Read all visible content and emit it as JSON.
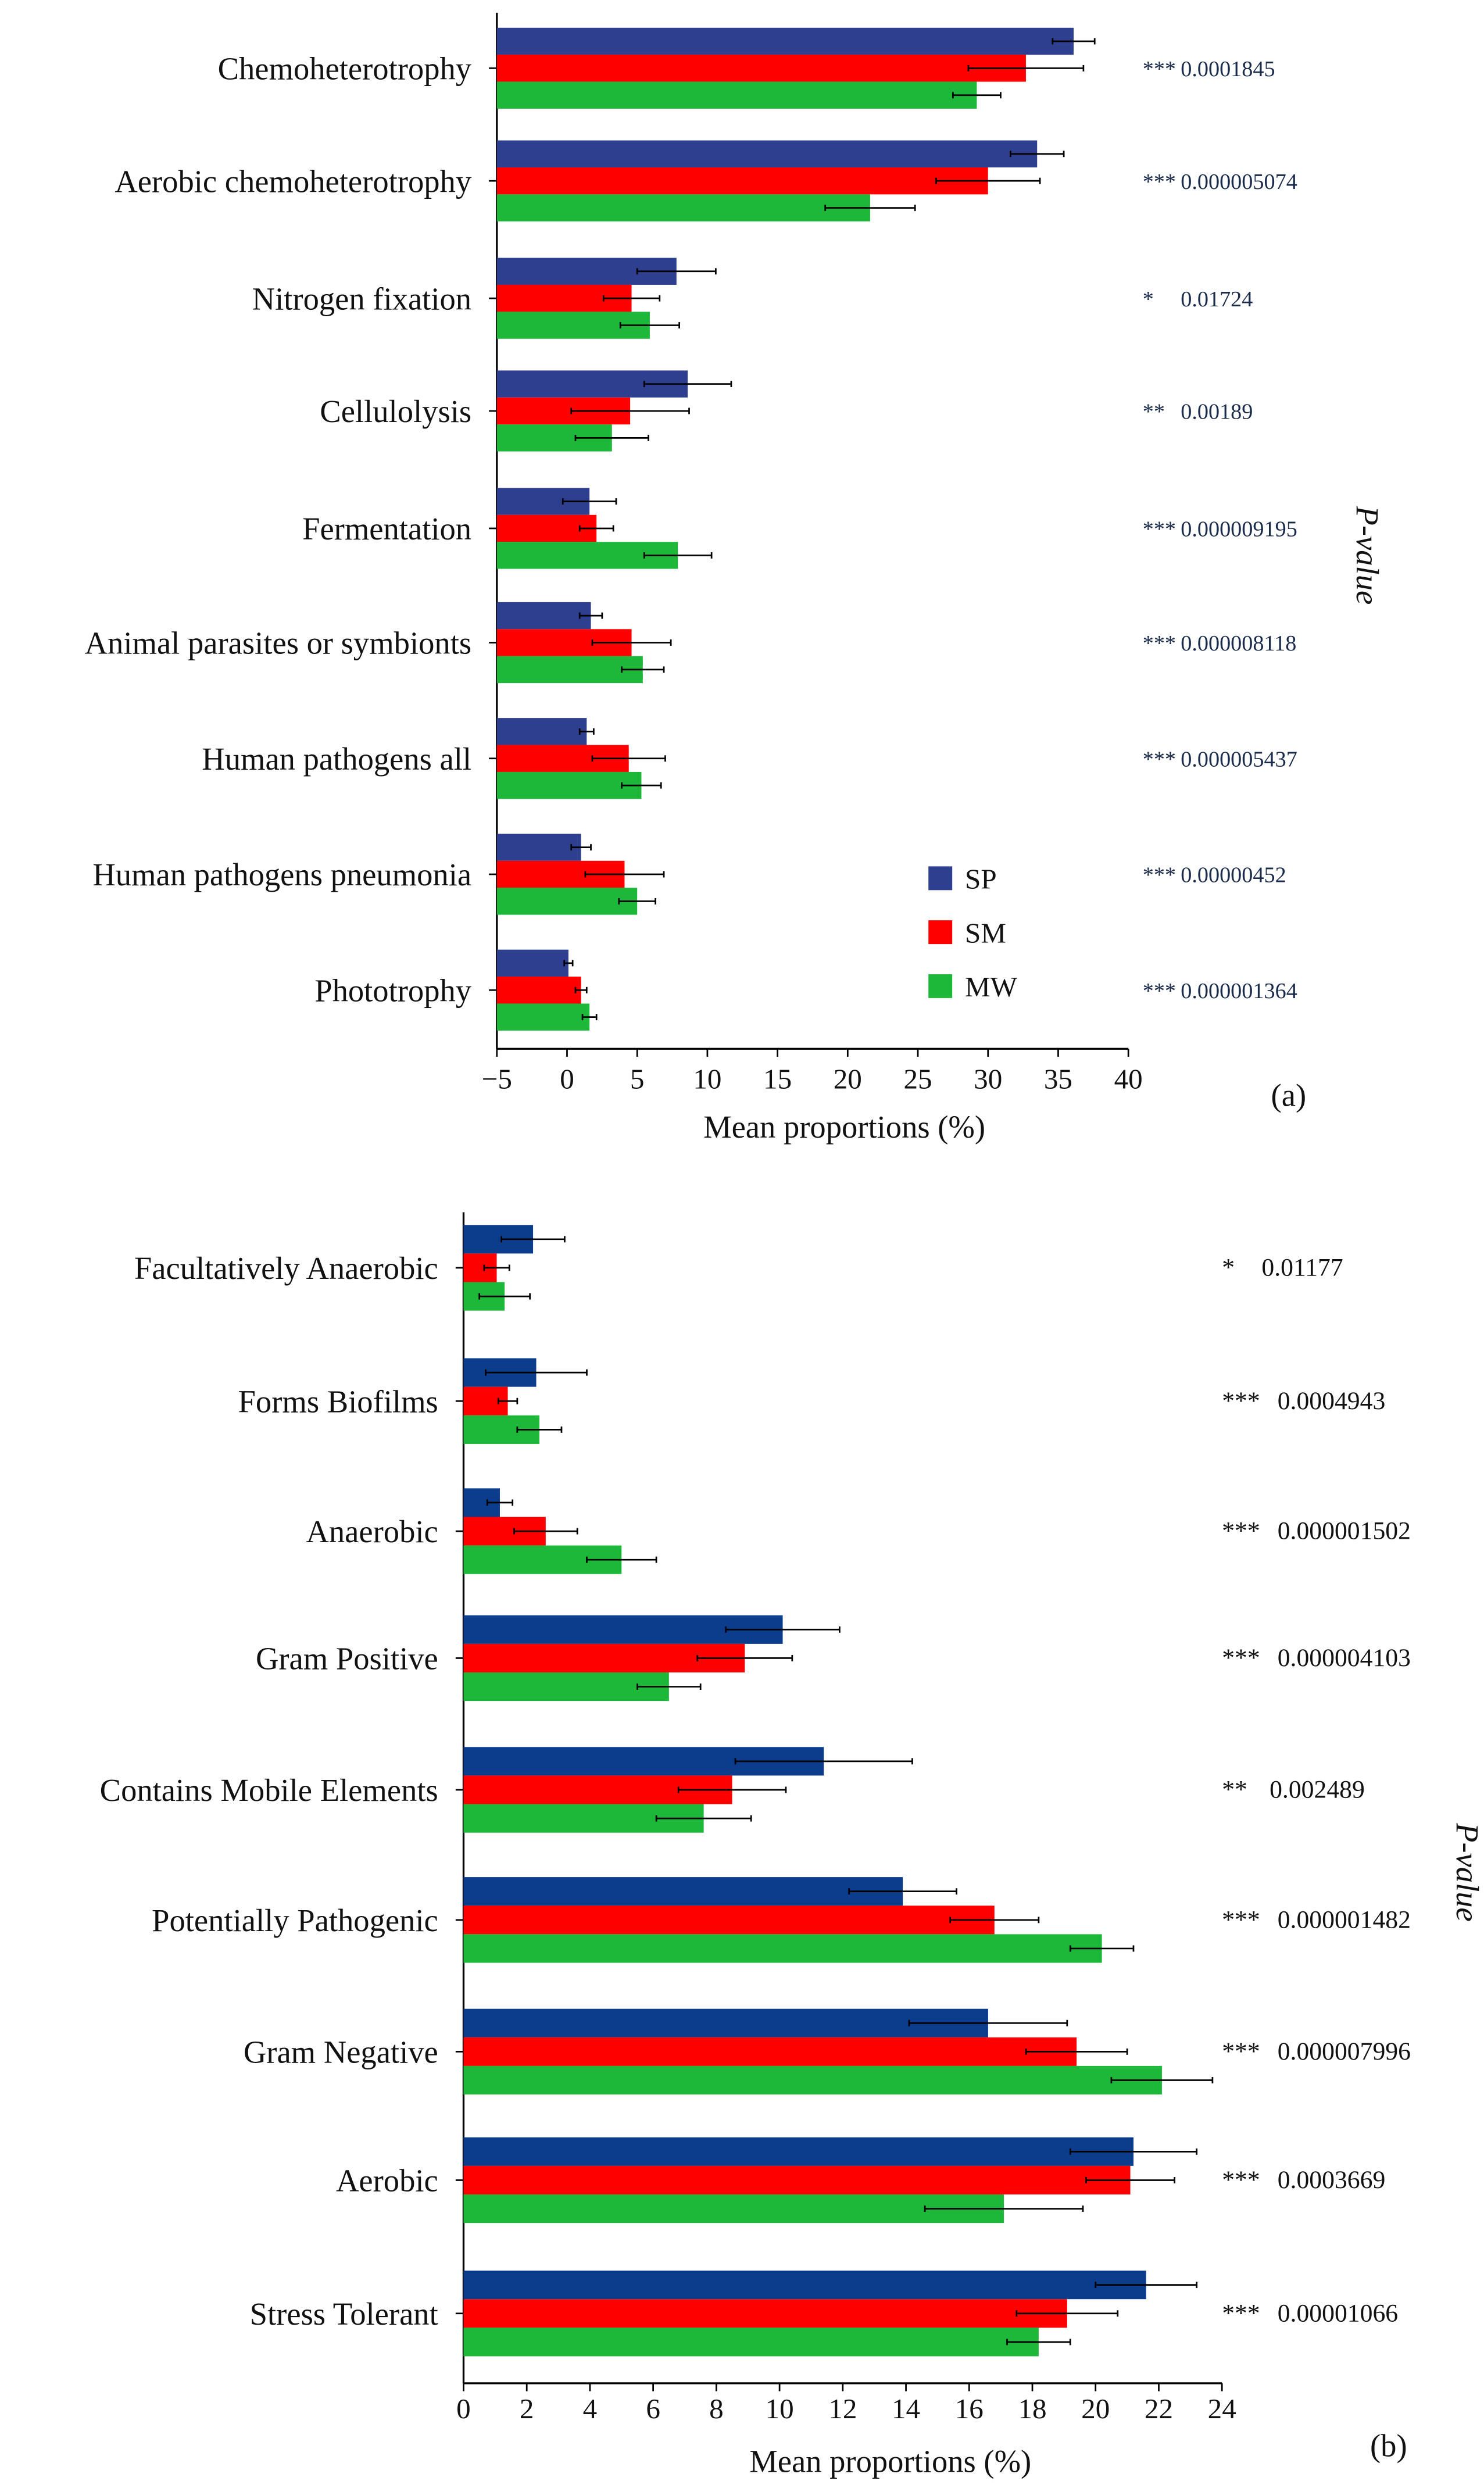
{
  "chart_data": [
    {
      "type": "bar",
      "orientation": "horizontal",
      "panel_label": "(a)",
      "xlabel": "Mean proportions (%)",
      "right_label": "P-value",
      "xlim": [
        -5,
        40
      ],
      "xticks": [
        -5,
        0,
        5,
        10,
        15,
        20,
        25,
        30,
        35,
        40
      ],
      "legend": {
        "placement": "bottom-right",
        "entries": [
          "SP",
          "SM",
          "MW"
        ]
      },
      "colors": {
        "SP": "#2e3f8f",
        "SM": "#ff0000",
        "MW": "#1db83a"
      },
      "categories": [
        "Chemoheterotrophy",
        "Aerobic chemoheterotrophy",
        "Nitrogen fixation",
        "Cellulolysis",
        "Fermentation",
        "Animal parasites or symbionts",
        "Human pathogens all",
        "Human pathogens pneumonia",
        "Phototrophy"
      ],
      "series": [
        {
          "name": "SP",
          "values": [
            36.1,
            33.5,
            7.8,
            8.6,
            1.6,
            1.7,
            1.4,
            1.0,
            0.1
          ],
          "errors": [
            1.5,
            1.9,
            2.8,
            3.1,
            1.9,
            0.8,
            0.5,
            0.7,
            0.3
          ]
        },
        {
          "name": "SM",
          "values": [
            32.7,
            30.0,
            4.6,
            4.5,
            2.1,
            4.6,
            4.4,
            4.1,
            1.0
          ],
          "errors": [
            4.1,
            3.7,
            2.0,
            4.2,
            1.2,
            2.8,
            2.6,
            2.8,
            0.4
          ]
        },
        {
          "name": "MW",
          "values": [
            29.2,
            21.6,
            5.9,
            3.2,
            7.9,
            5.4,
            5.3,
            5.0,
            1.6
          ],
          "errors": [
            1.7,
            3.2,
            2.1,
            2.6,
            2.4,
            1.5,
            1.4,
            1.3,
            0.5
          ]
        }
      ],
      "significance": [
        "***",
        "***",
        "*",
        "**",
        "***",
        "***",
        "***",
        "***",
        "***"
      ],
      "p_values": [
        "0.0001845",
        "0.000005074",
        "0.01724",
        "0.00189",
        "0.000009195",
        "0.000008118",
        "0.000005437",
        "0.00000452",
        "0.000001364"
      ]
    },
    {
      "type": "bar",
      "orientation": "horizontal",
      "panel_label": "(b)",
      "xlabel": "Mean proportions (%)",
      "right_label": "P-value",
      "xlim": [
        0,
        24
      ],
      "xticks": [
        0,
        2,
        4,
        6,
        8,
        10,
        12,
        14,
        16,
        18,
        20,
        22,
        24
      ],
      "colors": {
        "SP": "#0b3d8c",
        "SM": "#ff0000",
        "MW": "#1db83a"
      },
      "categories": [
        "Facultatively Anaerobic",
        "Forms Biofilms",
        "Anaerobic",
        "Gram Positive",
        "Contains Mobile Elements",
        "Potentially Pathogenic",
        "Gram Negative",
        "Aerobic",
        "Stress Tolerant"
      ],
      "series": [
        {
          "name": "SP",
          "values": [
            2.2,
            2.3,
            1.15,
            10.1,
            11.4,
            13.9,
            16.6,
            21.2,
            21.6
          ],
          "errors": [
            1.0,
            1.6,
            0.4,
            1.8,
            2.8,
            1.7,
            2.5,
            2.0,
            1.6
          ]
        },
        {
          "name": "SM",
          "values": [
            1.05,
            1.4,
            2.6,
            8.9,
            8.5,
            16.8,
            19.4,
            21.1,
            19.1
          ],
          "errors": [
            0.4,
            0.3,
            1.0,
            1.5,
            1.7,
            1.4,
            1.6,
            1.4,
            1.6
          ]
        },
        {
          "name": "MW",
          "values": [
            1.3,
            2.4,
            5.0,
            6.5,
            7.6,
            20.2,
            22.1,
            17.1,
            18.2
          ],
          "errors": [
            0.8,
            0.7,
            1.1,
            1.0,
            1.5,
            1.0,
            1.6,
            2.5,
            1.0
          ]
        }
      ],
      "significance": [
        "*",
        "***",
        "***",
        "***",
        "**",
        "***",
        "***",
        "***",
        "***"
      ],
      "p_values": [
        "0.01177",
        "0.0004943",
        "0.000001502",
        "0.000004103",
        "0.002489",
        "0.000001482",
        "0.000007996",
        "0.0003669",
        "0.00001066"
      ]
    }
  ]
}
